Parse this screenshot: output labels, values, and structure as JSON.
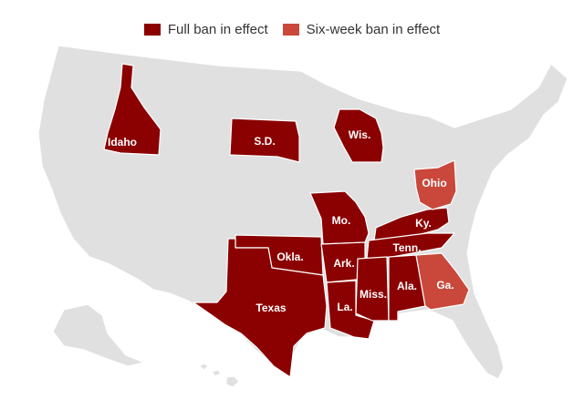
{
  "legend": [
    {
      "label": "Full ban in effect",
      "color": "#8b0000"
    },
    {
      "label": "Six-week ban in effect",
      "color": "#c9483b"
    }
  ],
  "colors": {
    "full": "#8b0000",
    "sixweek": "#c9483b",
    "none": "#e0e0e0",
    "border": "#ffffff"
  },
  "states": {
    "idaho": "Idaho",
    "sd": "S.D.",
    "wis": "Wis.",
    "ohio": "Ohio",
    "mo": "Mo.",
    "ky": "Ky.",
    "okla": "Okla.",
    "ark": "Ark.",
    "tenn": "Tenn.",
    "texas": "Texas",
    "la": "La.",
    "miss": "Miss.",
    "ala": "Ala.",
    "ga": "Ga."
  }
}
